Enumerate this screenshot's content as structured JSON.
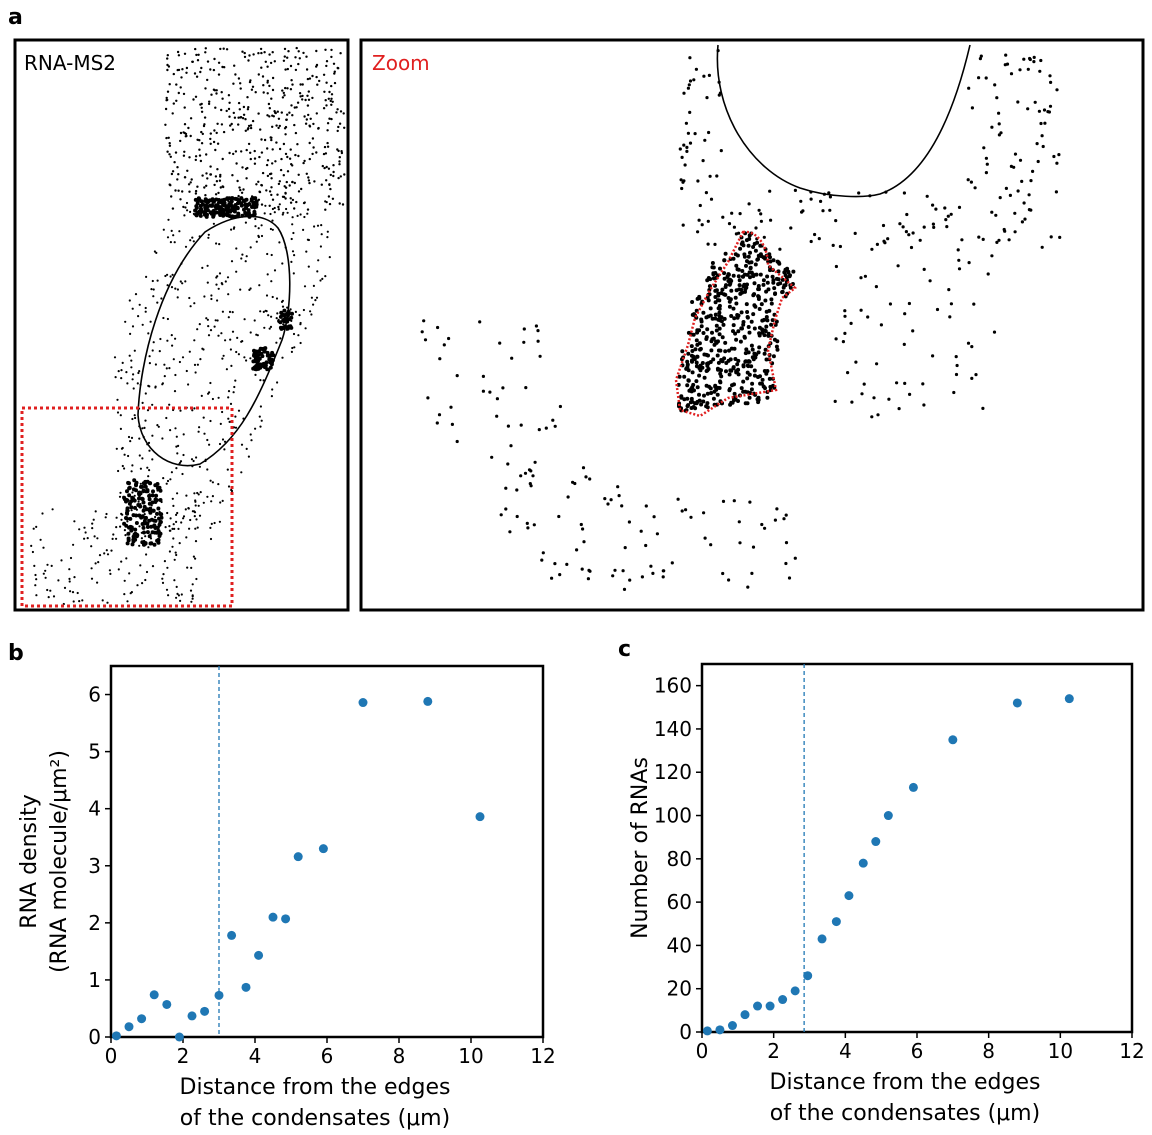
{
  "panels": {
    "a": {
      "letter": "a",
      "left_label": "RNA-MS2",
      "zoom_label": "Zoom",
      "colors": {
        "dots": "#000000",
        "outline": "#000000",
        "zoom_box": "#e02020"
      }
    },
    "b": {
      "letter": "b"
    },
    "c": {
      "letter": "c"
    }
  },
  "chart_data": [
    {
      "id": "b",
      "type": "scatter",
      "xlabel": [
        "Distance from the edges",
        "of the condensates (μm)"
      ],
      "ylabel": [
        "RNA density",
        "(RNA molecule/μm²)"
      ],
      "xlim": [
        0,
        12
      ],
      "ylim": [
        0,
        6.5
      ],
      "xticks": [
        0,
        2,
        4,
        6,
        8,
        10,
        12
      ],
      "yticks": [
        0,
        1,
        2,
        3,
        4,
        5,
        6
      ],
      "vline": 3.0,
      "grid": false,
      "color": "#1f77b4",
      "x": [
        0.15,
        0.5,
        0.85,
        1.2,
        1.55,
        1.9,
        2.25,
        2.6,
        3.0,
        3.35,
        3.75,
        4.1,
        4.5,
        4.85,
        5.2,
        5.9,
        7.0,
        8.8,
        10.25
      ],
      "y": [
        0.02,
        0.18,
        0.32,
        0.74,
        0.57,
        0.0,
        0.37,
        0.45,
        0.73,
        1.78,
        0.87,
        1.43,
        2.1,
        2.07,
        3.16,
        3.3,
        5.86,
        5.88,
        3.86
      ]
    },
    {
      "id": "c",
      "type": "scatter",
      "xlabel": [
        "Distance from the edges",
        "of the condensates (μm)"
      ],
      "ylabel": [
        "Number of RNAs"
      ],
      "xlim": [
        0,
        12
      ],
      "ylim": [
        0,
        170
      ],
      "xticks": [
        0,
        2,
        4,
        6,
        8,
        10,
        12
      ],
      "yticks": [
        0,
        20,
        40,
        60,
        80,
        100,
        120,
        140,
        160
      ],
      "vline": 2.85,
      "grid": false,
      "color": "#1f77b4",
      "x": [
        0.15,
        0.5,
        0.85,
        1.2,
        1.55,
        1.9,
        2.25,
        2.6,
        2.95,
        3.35,
        3.75,
        4.1,
        4.5,
        4.85,
        5.2,
        5.9,
        7.0,
        8.8,
        10.25
      ],
      "y": [
        0.5,
        1,
        3,
        8,
        12,
        12,
        15,
        19,
        26,
        43,
        51,
        63,
        78,
        88,
        100,
        113,
        135,
        152,
        154
      ]
    }
  ]
}
